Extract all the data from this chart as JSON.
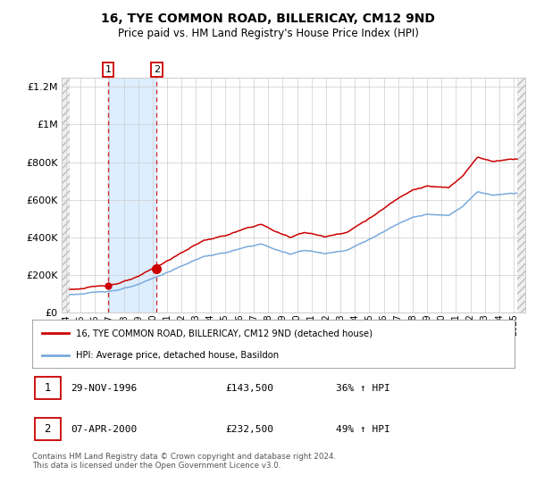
{
  "title": "16, TYE COMMON ROAD, BILLERICAY, CM12 9ND",
  "subtitle": "Price paid vs. HM Land Registry's House Price Index (HPI)",
  "legend_line1": "16, TYE COMMON ROAD, BILLERICAY, CM12 9ND (detached house)",
  "legend_line2": "HPI: Average price, detached house, Basildon",
  "footnote": "Contains HM Land Registry data © Crown copyright and database right 2024.\nThis data is licensed under the Open Government Licence v3.0.",
  "transaction1": {
    "label": "1",
    "date": "29-NOV-1996",
    "price": 143500,
    "pct": "36% ↑ HPI",
    "year": 1996.91
  },
  "transaction2": {
    "label": "2",
    "date": "07-APR-2000",
    "price": 232500,
    "pct": "49% ↑ HPI",
    "year": 2000.27
  },
  "red_line_color": "#cc0000",
  "blue_line_color": "#7aaadd",
  "highlight_color": "#ddeeff",
  "vline_color": "#cc0000",
  "ylim": [
    0,
    1250000
  ],
  "xlim_start": 1993.7,
  "xlim_end": 2025.8,
  "yticks": [
    0,
    200000,
    400000,
    600000,
    800000,
    1000000,
    1200000
  ],
  "ytick_labels": [
    "£0",
    "£200K",
    "£400K",
    "£600K",
    "£800K",
    "£1M",
    "£1.2M"
  ],
  "xtick_years": [
    1994,
    1995,
    1996,
    1997,
    1998,
    1999,
    2000,
    2001,
    2002,
    2003,
    2004,
    2005,
    2006,
    2007,
    2008,
    2009,
    2010,
    2011,
    2012,
    2013,
    2014,
    2015,
    2016,
    2017,
    2018,
    2019,
    2020,
    2021,
    2022,
    2023,
    2024,
    2025
  ],
  "data_start": 1994.25,
  "data_end": 2025.25
}
